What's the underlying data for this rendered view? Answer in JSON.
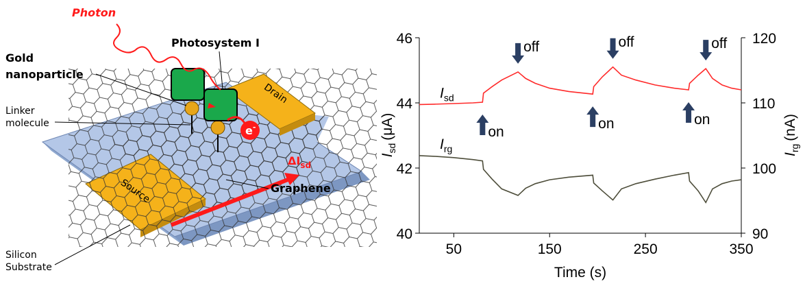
{
  "diagram": {
    "photon": "Photon",
    "photosystem": "Photosystem I",
    "gold": [
      "Gold",
      "nanoparticle"
    ],
    "linker": [
      "Linker",
      "molecule"
    ],
    "drain": "Drain",
    "source": "Source",
    "electron": {
      "main": "e",
      "superscript": "-"
    },
    "current": {
      "main": "ΔI",
      "subscript": "sd"
    },
    "graphene": "Graphene",
    "substrate": [
      "Silicon",
      "Substrate"
    ]
  },
  "chart_data": {
    "type": "line",
    "xlabel": "Time (s)",
    "ylabel": {
      "symbol": "I",
      "subscript": "sd",
      "unit": "(μA)"
    },
    "y2label": {
      "symbol": "I",
      "subscript": "rg",
      "unit": "(nA)"
    },
    "x": [
      14,
      30,
      50,
      70,
      80,
      81,
      90,
      100,
      117,
      125,
      135,
      150,
      170,
      195,
      196,
      205,
      216,
      225,
      240,
      260,
      280,
      295,
      296,
      305,
      313,
      320,
      330,
      340,
      350
    ],
    "series": [
      {
        "name": {
          "symbol": "I",
          "subscript": "sd"
        },
        "color": "#ff2a2a",
        "axis": "y",
        "values": [
          43.95,
          43.96,
          43.98,
          44.0,
          44.02,
          44.3,
          44.5,
          44.7,
          44.95,
          44.75,
          44.6,
          44.45,
          44.35,
          44.27,
          44.5,
          44.8,
          45.1,
          44.85,
          44.7,
          44.55,
          44.45,
          44.4,
          44.6,
          44.85,
          45.05,
          44.75,
          44.55,
          44.45,
          44.4
        ]
      },
      {
        "name": {
          "symbol": "I",
          "subscript": "rg"
        },
        "color": "#4d4d3a",
        "axis": "y2",
        "values": [
          101.9,
          101.8,
          101.6,
          101.3,
          101.1,
          99.8,
          98.3,
          96.8,
          95.8,
          96.9,
          97.6,
          98.2,
          98.6,
          98.9,
          97.7,
          96.5,
          95.1,
          96.8,
          97.6,
          98.3,
          98.9,
          99.3,
          98.0,
          96.5,
          94.7,
          96.8,
          97.6,
          98.0,
          98.2
        ]
      }
    ],
    "annotations": [
      {
        "text": "on",
        "x": 80
      },
      {
        "text": "on",
        "x": 195
      },
      {
        "text": "on",
        "x": 295
      },
      {
        "text": "off",
        "x": 117
      },
      {
        "text": "off",
        "x": 216
      },
      {
        "text": "off",
        "x": 313
      }
    ],
    "xlim": [
      14,
      350
    ],
    "xticks": [
      50,
      150,
      250,
      350
    ],
    "ylim": [
      40,
      46
    ],
    "yticks": [
      40,
      42,
      44,
      46
    ],
    "y2lim": [
      90,
      120
    ],
    "y2ticks": [
      90,
      100,
      110,
      120
    ]
  }
}
